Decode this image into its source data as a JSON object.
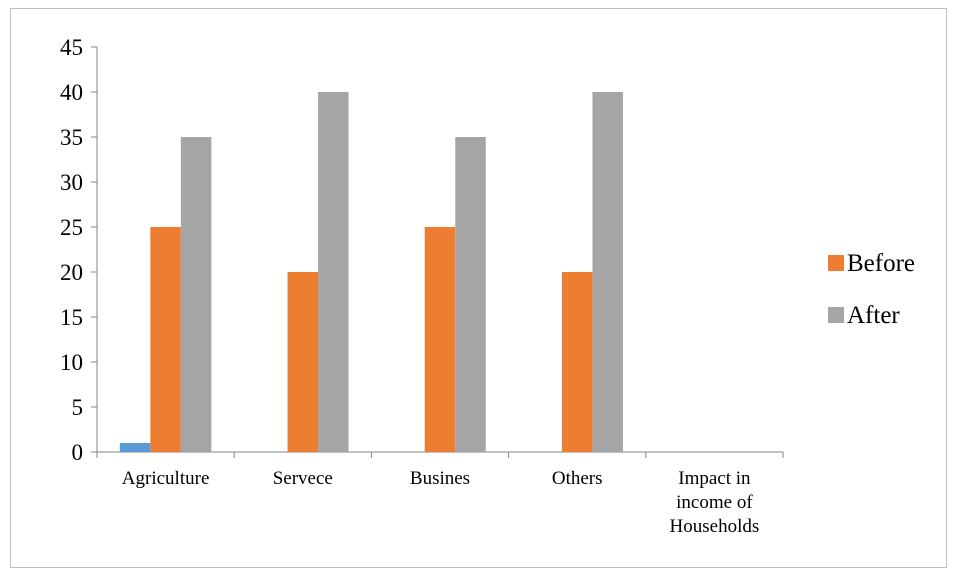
{
  "chart_data": {
    "type": "bar",
    "title": "",
    "xlabel": "",
    "ylabel": "",
    "ylim": [
      0,
      45
    ],
    "yticks": [
      0,
      5,
      10,
      15,
      20,
      25,
      30,
      35,
      40,
      45
    ],
    "grid": false,
    "legend_position": "right",
    "categories": [
      [
        "Agriculture"
      ],
      [
        "Servece"
      ],
      [
        "Busines"
      ],
      [
        "Others"
      ],
      [
        "Impact in",
        "income of",
        "Households"
      ]
    ],
    "series": [
      {
        "values": [
          1,
          0,
          0,
          0,
          0
        ],
        "color": "#5B9BD5",
        "in_legend": false
      },
      {
        "name": "Before",
        "values": [
          25,
          20,
          25,
          20,
          0
        ],
        "color": "#ED7D31",
        "in_legend": true
      },
      {
        "name": "After",
        "values": [
          35,
          40,
          35,
          40,
          0
        ],
        "color": "#A5A5A5",
        "in_legend": true
      }
    ]
  }
}
